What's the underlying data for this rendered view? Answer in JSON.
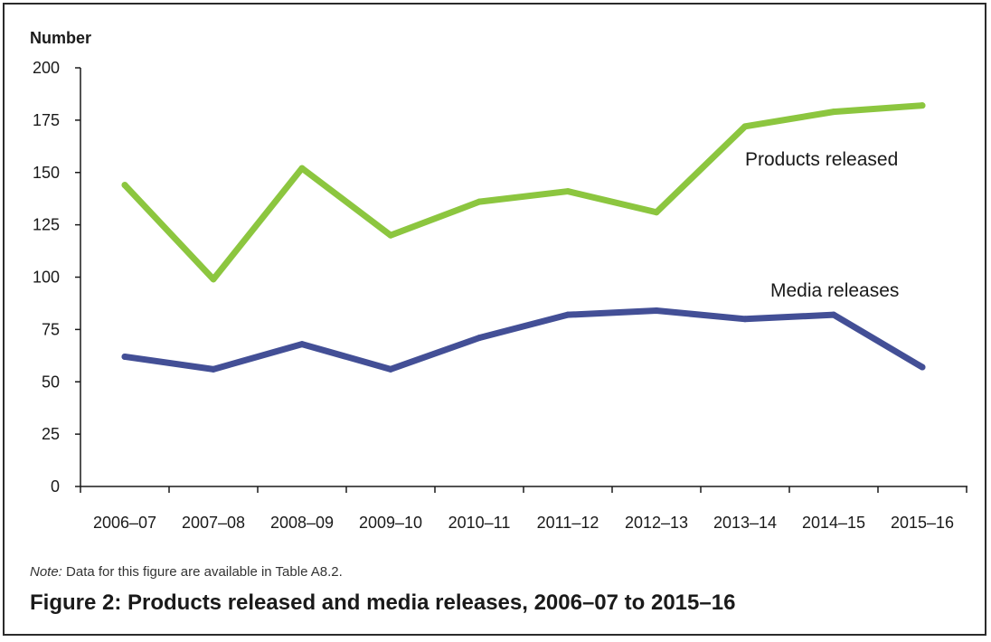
{
  "chart_data": {
    "type": "line",
    "categories": [
      "2006–07",
      "2007–08",
      "2008–09",
      "2009–10",
      "2010–11",
      "2011–12",
      "2012–13",
      "2013–14",
      "2014–15",
      "2015–16"
    ],
    "series": [
      {
        "name": "Products released",
        "color": "#8cc63f",
        "values": [
          144,
          99,
          152,
          120,
          136,
          141,
          131,
          172,
          179,
          182
        ]
      },
      {
        "name": "Media releases",
        "color": "#434f96",
        "values": [
          62,
          56,
          68,
          56,
          71,
          82,
          84,
          80,
          82,
          57
        ]
      }
    ],
    "ylabel": "Number",
    "ylim": [
      0,
      200
    ],
    "yticks": [
      0,
      25,
      50,
      75,
      100,
      125,
      150,
      175,
      200
    ],
    "grid": false,
    "legend": "inline labels near lines"
  },
  "note": {
    "prefix": "Note:",
    "text": " Data for this figure are available in Table A8.2."
  },
  "figure_title": "Figure 2: Products released and media releases, 2006–07 to 2015–16"
}
